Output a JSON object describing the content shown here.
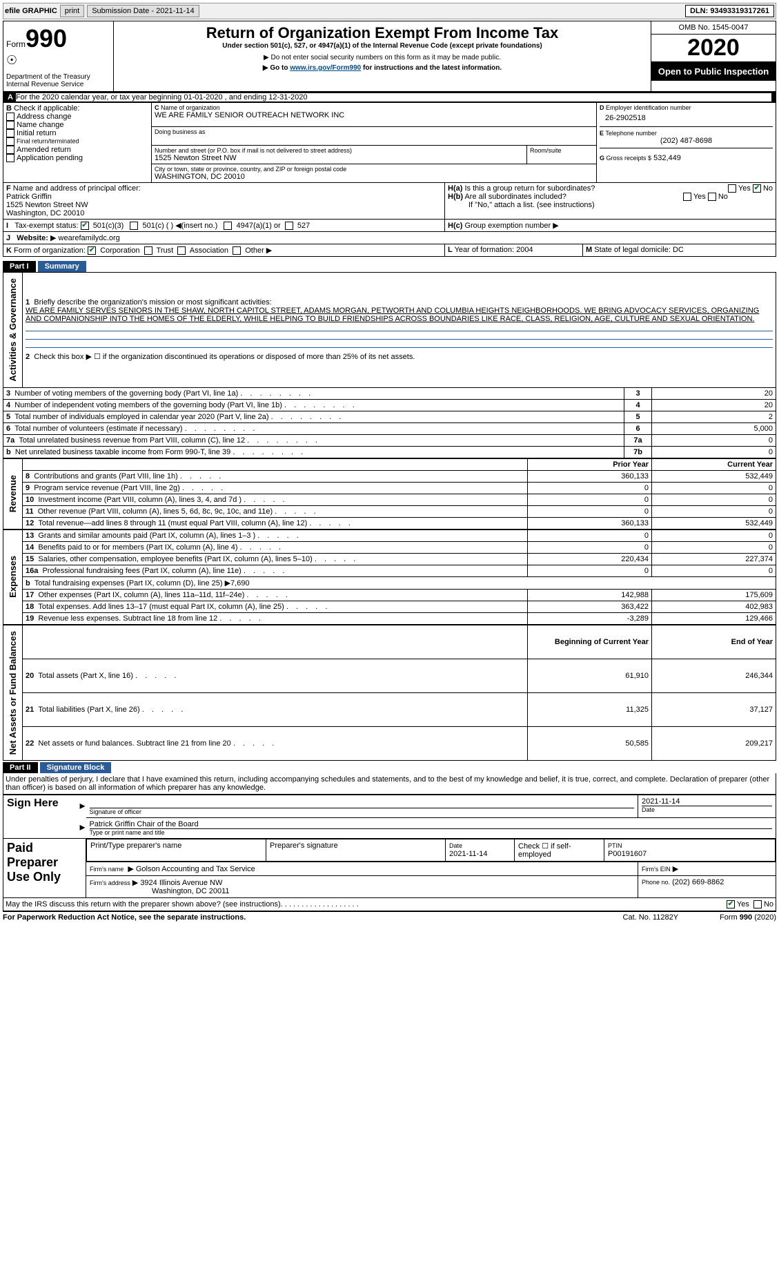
{
  "topbar": {
    "efile_label": "efile GRAPHIC",
    "print_btn": "print",
    "subdate_label": "Submission Date - 2021-11-14",
    "dln_label": "DLN: 93493319317261"
  },
  "header": {
    "form_label": "Form",
    "form_number": "990",
    "dept": "Department of the Treasury\nInternal Revenue Service",
    "title": "Return of Organization Exempt From Income Tax",
    "subtitle": "Under section 501(c), 527, or 4947(a)(1) of the Internal Revenue Code (except private foundations)",
    "ssn_note": "Do not enter social security numbers on this form as it may be made public.",
    "goto": "Go to",
    "goto_url": "www.irs.gov/Form990",
    "goto_suffix": "for instructions and the latest information.",
    "omb": "OMB No. 1545-0047",
    "year": "2020",
    "open": "Open to Public Inspection"
  },
  "A": {
    "text": "For the 2020 calendar year, or tax year beginning 01-01-2020     , and ending 12-31-2020"
  },
  "B": {
    "label": "Check if applicable:",
    "addr_change": "Address change",
    "name_change": "Name change",
    "initial": "Initial return",
    "final": "Final return/terminated",
    "amended": "Amended return",
    "app_pending": "Application pending"
  },
  "C": {
    "name_label": "Name of organization",
    "org_name": "WE ARE FAMILY SENIOR OUTREACH NETWORK INC",
    "dba_label": "Doing business as",
    "street_label": "Number and street (or P.O. box if mail is not delivered to street address)",
    "room_label": "Room/suite",
    "street": "1525 Newton Street NW",
    "city_label": "City or town, state or province, country, and ZIP or foreign postal code",
    "city": "WASHINGTON, DC  20010"
  },
  "D": {
    "label": "Employer identification number",
    "value": "26-2902518"
  },
  "E": {
    "label": "Telephone number",
    "value": "(202) 487-8698"
  },
  "G": {
    "label": "Gross receipts $",
    "value": "532,449"
  },
  "F": {
    "label": "Name and address of principal officer:",
    "name": "Patrick Griffin",
    "addr1": "1525 Newton Street NW",
    "addr2": "Washington, DC  20010"
  },
  "H": {
    "a_label": "Is this a group return for subordinates?",
    "b_label": "Are all subordinates included?",
    "yes": "Yes",
    "no": "No",
    "attach": "If \"No,\" attach a list. (see instructions)",
    "c_label": "Group exemption number"
  },
  "I": {
    "label": "Tax-exempt status:",
    "opts": [
      "501(c)(3)",
      "501(c) (  ) ◀(insert no.)",
      "4947(a)(1) or",
      "527"
    ]
  },
  "J": {
    "label": "Website:",
    "url": "wearefamilydc.org"
  },
  "K": {
    "label": "Form of organization:",
    "opts": [
      "Corporation",
      "Trust",
      "Association",
      "Other"
    ]
  },
  "L": {
    "label": "Year of formation:",
    "value": "2004"
  },
  "M": {
    "label": "State of legal domicile:",
    "value": "DC"
  },
  "part1": {
    "label": "Part I",
    "title": "Summary",
    "q1_label": "Briefly describe the organization's mission or most significant activities:",
    "mission": "WE ARE FAMILY SERVES SENIORS IN THE SHAW, NORTH CAPITOL STREET, ADAMS MORGAN, PETWORTH AND COLUMBIA HEIGHTS NEIGHBORHOODS. WE BRING ADVOCACY SERVICES, ORGANIZING AND COMPANIONSHIP INTO THE HOMES OF THE ELDERLY, WHILE HELPING TO BUILD FRIENDSHIPS ACROSS BOUNDARIES LIKE RACE, CLASS, RELIGION, AGE, CULTURE AND SEXUAL ORIENTATION.",
    "q2": "Check this box ▶ ☐ if the organization discontinued its operations or disposed of more than 25% of its net assets.",
    "rows_ag": [
      {
        "n": "3",
        "d": "Number of voting members of the governing body (Part VI, line 1a)",
        "box": "3",
        "v": "20"
      },
      {
        "n": "4",
        "d": "Number of independent voting members of the governing body (Part VI, line 1b)",
        "box": "4",
        "v": "20"
      },
      {
        "n": "5",
        "d": "Total number of individuals employed in calendar year 2020 (Part V, line 2a)",
        "box": "5",
        "v": "2"
      },
      {
        "n": "6",
        "d": "Total number of volunteers (estimate if necessary)",
        "box": "6",
        "v": "5,000"
      },
      {
        "n": "7a",
        "d": "Total unrelated business revenue from Part VIII, column (C), line 12",
        "box": "7a",
        "v": "0"
      },
      {
        "n": "b",
        "d": "Net unrelated business taxable income from Form 990-T, line 39",
        "box": "7b",
        "v": "0"
      }
    ],
    "prior_label": "Prior Year",
    "current_label": "Current Year",
    "revenue_rows": [
      {
        "n": "8",
        "d": "Contributions and grants (Part VIII, line 1h)",
        "p": "360,133",
        "c": "532,449"
      },
      {
        "n": "9",
        "d": "Program service revenue (Part VIII, line 2g)",
        "p": "0",
        "c": "0"
      },
      {
        "n": "10",
        "d": "Investment income (Part VIII, column (A), lines 3, 4, and 7d )",
        "p": "0",
        "c": "0"
      },
      {
        "n": "11",
        "d": "Other revenue (Part VIII, column (A), lines 5, 6d, 8c, 9c, 10c, and 11e)",
        "p": "0",
        "c": "0"
      },
      {
        "n": "12",
        "d": "Total revenue—add lines 8 through 11 (must equal Part VIII, column (A), line 12)",
        "p": "360,133",
        "c": "532,449"
      }
    ],
    "expense_rows": [
      {
        "n": "13",
        "d": "Grants and similar amounts paid (Part IX, column (A), lines 1–3 )",
        "p": "0",
        "c": "0"
      },
      {
        "n": "14",
        "d": "Benefits paid to or for members (Part IX, column (A), line 4)",
        "p": "0",
        "c": "0"
      },
      {
        "n": "15",
        "d": "Salaries, other compensation, employee benefits (Part IX, column (A), lines 5–10)",
        "p": "220,434",
        "c": "227,374"
      },
      {
        "n": "16a",
        "d": "Professional fundraising fees (Part IX, column (A), line 11e)",
        "p": "0",
        "c": "0"
      },
      {
        "n": "b",
        "d": "Total fundraising expenses (Part IX, column (D), line 25) ▶7,690",
        "p": "",
        "c": "",
        "noline": true
      },
      {
        "n": "17",
        "d": "Other expenses (Part IX, column (A), lines 11a–11d, 11f–24e)",
        "p": "142,988",
        "c": "175,609"
      },
      {
        "n": "18",
        "d": "Total expenses. Add lines 13–17 (must equal Part IX, column (A), line 25)",
        "p": "363,422",
        "c": "402,983"
      },
      {
        "n": "19",
        "d": "Revenue less expenses. Subtract line 18 from line 12",
        "p": "-3,289",
        "c": "129,466"
      }
    ],
    "begin_label": "Beginning of Current Year",
    "end_label": "End of Year",
    "net_rows": [
      {
        "n": "20",
        "d": "Total assets (Part X, line 16)",
        "p": "61,910",
        "c": "246,344"
      },
      {
        "n": "21",
        "d": "Total liabilities (Part X, line 26)",
        "p": "11,325",
        "c": "37,127"
      },
      {
        "n": "22",
        "d": "Net assets or fund balances. Subtract line 21 from line 20",
        "p": "50,585",
        "c": "209,217"
      }
    ],
    "side_ag": "Activities & Governance",
    "side_rev": "Revenue",
    "side_exp": "Expenses",
    "side_net": "Net Assets or Fund Balances"
  },
  "part2": {
    "label": "Part II",
    "title": "Signature Block",
    "perjury": "Under penalties of perjury, I declare that I have examined this return, including accompanying schedules and statements, and to the best of my knowledge and belief, it is true, correct, and complete. Declaration of preparer (other than officer) is based on all information of which preparer has any knowledge.",
    "sign_here": "Sign Here",
    "sig_officer": "Signature of officer",
    "date": "Date",
    "sig_date": "2021-11-14",
    "officer_name": "Patrick Griffin  Chair of the Board",
    "type_print": "Type or print name and title",
    "paid": "Paid Preparer Use Only",
    "prep_name_label": "Print/Type preparer's name",
    "prep_sig_label": "Preparer's signature",
    "prep_date": "2021-11-14",
    "check_if": "Check ☐ if self-employed",
    "ptin_label": "PTIN",
    "ptin": "P00191607",
    "firm_name_label": "Firm's name",
    "firm_name": "Golson Accounting and Tax Service",
    "firm_ein_label": "Firm's EIN",
    "firm_addr_label": "Firm's address",
    "firm_addr": "3924 Illinois Avenue NW",
    "firm_city": "Washington, DC  20011",
    "phone_label": "Phone no.",
    "phone": "(202) 669-8862",
    "discuss": "May the IRS discuss this return with the preparer shown above? (see instructions)"
  },
  "footer": {
    "pra": "For Paperwork Reduction Act Notice, see the separate instructions.",
    "cat": "Cat. No. 11282Y",
    "form": "Form 990 (2020)"
  },
  "colors": {
    "blue": "#2a5b99",
    "link": "#004b8d",
    "green": "#0a7d2c"
  }
}
